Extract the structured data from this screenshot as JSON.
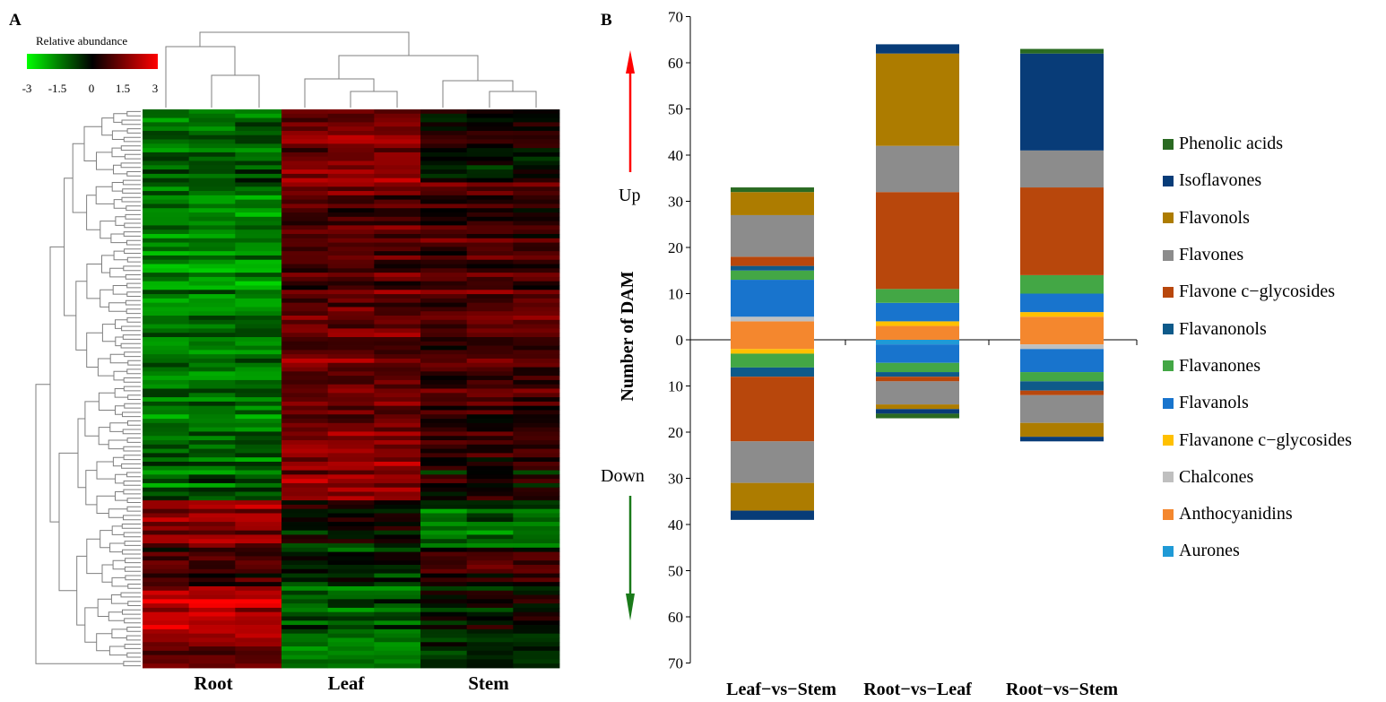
{
  "panels": {
    "a_label": "A",
    "b_label": "B"
  },
  "heatmap": {
    "colorbar_title": "Relative abundance",
    "colorbar_ticks": [
      "-3",
      "-1.5",
      "0",
      "1.5",
      "3"
    ],
    "colorbar_range": [
      -3,
      3
    ],
    "colors": {
      "low": "#00ff00",
      "mid": "#000000",
      "high": "#ff0000"
    },
    "groups": [
      "Root",
      "Leaf",
      "Stem"
    ],
    "columns_per_group": 3
  },
  "chart_data": {
    "type": "bar",
    "stacked": true,
    "ylabel": "Number of  DAM",
    "ylim": [
      -70,
      70
    ],
    "y_ticks": [
      70,
      60,
      50,
      40,
      30,
      20,
      10,
      0,
      10,
      20,
      30,
      40,
      50,
      60,
      70
    ],
    "up_label": "Up",
    "down_label": "Down",
    "categories": [
      "Leaf−vs−Stem",
      "Root−vs−Leaf",
      "Root−vs−Stem"
    ],
    "series": [
      {
        "name": "Aurones",
        "color": "#1f9ad6",
        "up": [
          0,
          0,
          0
        ],
        "down": [
          0,
          1,
          0
        ]
      },
      {
        "name": "Anthocyanidins",
        "color": "#f4872e",
        "up": [
          4,
          3,
          5
        ],
        "down": [
          2,
          0,
          1
        ]
      },
      {
        "name": "Chalcones",
        "color": "#bfbfbf",
        "up": [
          1,
          0,
          0
        ],
        "down": [
          0,
          0,
          1
        ]
      },
      {
        "name": "Flavanone c−glycosides",
        "color": "#ffc000",
        "up": [
          0,
          1,
          1
        ],
        "down": [
          1,
          0,
          0
        ]
      },
      {
        "name": "Flavanols",
        "color": "#1874cd",
        "up": [
          8,
          4,
          4
        ],
        "down": [
          0,
          4,
          5
        ]
      },
      {
        "name": "Flavanones",
        "color": "#43a745",
        "up": [
          2,
          3,
          4
        ],
        "down": [
          3,
          2,
          2
        ]
      },
      {
        "name": "Flavanonols",
        "color": "#0e5a8a",
        "up": [
          1,
          0,
          0
        ],
        "down": [
          2,
          1,
          2
        ]
      },
      {
        "name": "Flavone c−glycosides",
        "color": "#b8470c",
        "up": [
          2,
          21,
          19
        ],
        "down": [
          14,
          1,
          1
        ]
      },
      {
        "name": "Flavones",
        "color": "#8c8c8c",
        "up": [
          9,
          10,
          8
        ],
        "down": [
          9,
          5,
          6
        ]
      },
      {
        "name": "Flavonols",
        "color": "#ad7c00",
        "up": [
          5,
          20,
          0
        ],
        "down": [
          6,
          1,
          3
        ]
      },
      {
        "name": "Isoflavones",
        "color": "#083c78",
        "up": [
          0,
          2,
          21
        ],
        "down": [
          2,
          1,
          1
        ]
      },
      {
        "name": "Phenolic acids",
        "color": "#2a6a22",
        "up": [
          1,
          0,
          1
        ],
        "down": [
          0,
          1,
          0
        ]
      }
    ],
    "legend": [
      "Phenolic acids",
      "Isoflavones",
      "Flavonols",
      "Flavones",
      "Flavone c−glycosides",
      "Flavanonols",
      "Flavanones",
      "Flavanols",
      "Flavanone c−glycosides",
      "Chalcones",
      "Anthocyanidins",
      "Aurones"
    ],
    "legend_position": "right"
  }
}
